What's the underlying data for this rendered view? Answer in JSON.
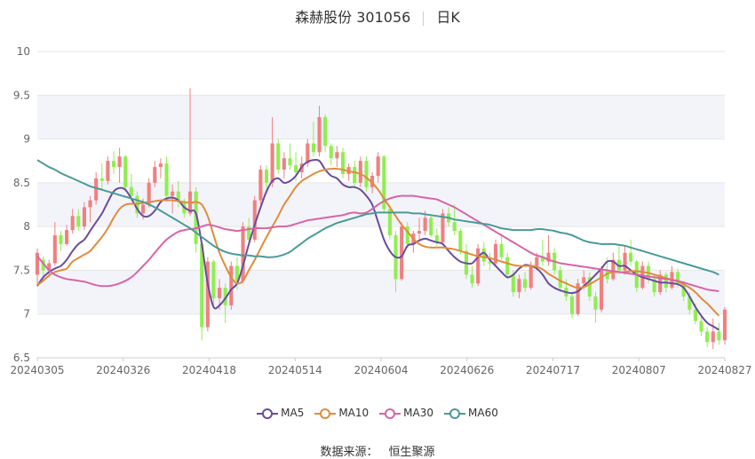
{
  "header": {
    "stock_name": "森赫股份 301056",
    "period": "日K"
  },
  "source": {
    "label": "数据来源：",
    "value": "恒生聚源"
  },
  "colors": {
    "up": "#f08080",
    "down": "#90ee50",
    "MA5": "#6a4c9c",
    "MA10": "#e08c3c",
    "MA30": "#d964a8",
    "MA60": "#4a9a9a",
    "band": "#f3f4fa",
    "grid": "#e6e6e6",
    "axis_text": "#666666"
  },
  "chart_data": {
    "type": "candlestick",
    "title": "森赫股份 301056",
    "ylim": [
      6.5,
      10
    ],
    "yticks": [
      "6.5",
      "7",
      "7.5",
      "8",
      "8.5",
      "9",
      "9.5",
      "10"
    ],
    "xtick_labels": [
      "20240305",
      "20240326",
      "20240418",
      "20240514",
      "20240604",
      "20240626",
      "20240717",
      "20240807",
      "20240827"
    ],
    "legend": [
      "MA5",
      "MA10",
      "MA30",
      "MA60"
    ],
    "legend_position": "bottom",
    "candles": [
      {
        "o": 7.45,
        "h": 7.75,
        "l": 7.32,
        "c": 7.7
      },
      {
        "o": 7.62,
        "h": 7.66,
        "l": 7.38,
        "c": 7.5
      },
      {
        "o": 7.5,
        "h": 7.62,
        "l": 7.42,
        "c": 7.58
      },
      {
        "o": 7.58,
        "h": 8.05,
        "l": 7.55,
        "c": 7.9
      },
      {
        "o": 7.9,
        "h": 7.95,
        "l": 7.72,
        "c": 7.8
      },
      {
        "o": 7.8,
        "h": 8.02,
        "l": 7.78,
        "c": 7.96
      },
      {
        "o": 7.96,
        "h": 8.2,
        "l": 7.92,
        "c": 8.12
      },
      {
        "o": 8.12,
        "h": 8.2,
        "l": 7.95,
        "c": 8.0
      },
      {
        "o": 8.0,
        "h": 8.28,
        "l": 7.96,
        "c": 8.22
      },
      {
        "o": 8.22,
        "h": 8.35,
        "l": 8.05,
        "c": 8.3
      },
      {
        "o": 8.3,
        "h": 8.62,
        "l": 8.25,
        "c": 8.55
      },
      {
        "o": 8.55,
        "h": 8.72,
        "l": 8.42,
        "c": 8.52
      },
      {
        "o": 8.52,
        "h": 8.8,
        "l": 8.48,
        "c": 8.75
      },
      {
        "o": 8.75,
        "h": 8.86,
        "l": 8.6,
        "c": 8.68
      },
      {
        "o": 8.68,
        "h": 8.9,
        "l": 8.5,
        "c": 8.8
      },
      {
        "o": 8.8,
        "h": 8.82,
        "l": 8.4,
        "c": 8.45
      },
      {
        "o": 8.45,
        "h": 8.6,
        "l": 8.3,
        "c": 8.35
      },
      {
        "o": 8.35,
        "h": 8.4,
        "l": 8.1,
        "c": 8.15
      },
      {
        "o": 8.15,
        "h": 8.32,
        "l": 8.08,
        "c": 8.25
      },
      {
        "o": 8.25,
        "h": 8.55,
        "l": 8.22,
        "c": 8.5
      },
      {
        "o": 8.5,
        "h": 8.75,
        "l": 8.45,
        "c": 8.68
      },
      {
        "o": 8.68,
        "h": 8.78,
        "l": 8.55,
        "c": 8.72
      },
      {
        "o": 8.72,
        "h": 8.8,
        "l": 8.3,
        "c": 8.35
      },
      {
        "o": 8.35,
        "h": 8.48,
        "l": 8.15,
        "c": 8.4
      },
      {
        "o": 8.4,
        "h": 8.52,
        "l": 8.22,
        "c": 8.28
      },
      {
        "o": 8.28,
        "h": 8.32,
        "l": 8.1,
        "c": 8.15
      },
      {
        "o": 8.15,
        "h": 9.58,
        "l": 8.12,
        "c": 8.4
      },
      {
        "o": 8.4,
        "h": 8.45,
        "l": 7.7,
        "c": 7.8
      },
      {
        "o": 7.8,
        "h": 7.82,
        "l": 6.7,
        "c": 6.85
      },
      {
        "o": 6.85,
        "h": 7.65,
        "l": 6.8,
        "c": 7.6
      },
      {
        "o": 7.6,
        "h": 7.62,
        "l": 7.1,
        "c": 7.18
      },
      {
        "o": 7.18,
        "h": 7.4,
        "l": 7.05,
        "c": 7.3
      },
      {
        "o": 7.3,
        "h": 7.35,
        "l": 6.9,
        "c": 7.1
      },
      {
        "o": 7.1,
        "h": 7.6,
        "l": 7.05,
        "c": 7.55
      },
      {
        "o": 7.55,
        "h": 7.65,
        "l": 7.28,
        "c": 7.38
      },
      {
        "o": 7.38,
        "h": 8.05,
        "l": 7.35,
        "c": 8.0
      },
      {
        "o": 8.0,
        "h": 8.1,
        "l": 7.8,
        "c": 7.85
      },
      {
        "o": 7.85,
        "h": 8.35,
        "l": 7.82,
        "c": 8.3
      },
      {
        "o": 8.3,
        "h": 8.7,
        "l": 8.25,
        "c": 8.65
      },
      {
        "o": 8.65,
        "h": 8.7,
        "l": 8.4,
        "c": 8.5
      },
      {
        "o": 8.5,
        "h": 9.25,
        "l": 8.45,
        "c": 8.95
      },
      {
        "o": 8.95,
        "h": 9.0,
        "l": 8.6,
        "c": 8.65
      },
      {
        "o": 8.65,
        "h": 8.85,
        "l": 8.55,
        "c": 8.78
      },
      {
        "o": 8.78,
        "h": 8.95,
        "l": 8.65,
        "c": 8.7
      },
      {
        "o": 8.7,
        "h": 8.85,
        "l": 8.52,
        "c": 8.62
      },
      {
        "o": 8.62,
        "h": 8.8,
        "l": 8.55,
        "c": 8.72
      },
      {
        "o": 8.72,
        "h": 9.0,
        "l": 8.68,
        "c": 8.95
      },
      {
        "o": 8.95,
        "h": 9.2,
        "l": 8.8,
        "c": 8.85
      },
      {
        "o": 8.85,
        "h": 9.38,
        "l": 8.8,
        "c": 9.25
      },
      {
        "o": 9.25,
        "h": 9.28,
        "l": 8.85,
        "c": 8.92
      },
      {
        "o": 8.92,
        "h": 8.95,
        "l": 8.7,
        "c": 8.78
      },
      {
        "o": 8.78,
        "h": 8.92,
        "l": 8.68,
        "c": 8.85
      },
      {
        "o": 8.85,
        "h": 8.9,
        "l": 8.55,
        "c": 8.6
      },
      {
        "o": 8.6,
        "h": 8.72,
        "l": 8.52,
        "c": 8.68
      },
      {
        "o": 8.68,
        "h": 8.75,
        "l": 8.45,
        "c": 8.5
      },
      {
        "o": 8.5,
        "h": 8.8,
        "l": 8.45,
        "c": 8.75
      },
      {
        "o": 8.75,
        "h": 8.8,
        "l": 8.4,
        "c": 8.45
      },
      {
        "o": 8.45,
        "h": 8.62,
        "l": 8.38,
        "c": 8.58
      },
      {
        "o": 8.58,
        "h": 8.85,
        "l": 8.5,
        "c": 8.8
      },
      {
        "o": 8.8,
        "h": 8.82,
        "l": 8.15,
        "c": 8.2
      },
      {
        "o": 8.2,
        "h": 8.25,
        "l": 7.85,
        "c": 7.9
      },
      {
        "o": 7.9,
        "h": 7.95,
        "l": 7.25,
        "c": 7.4
      },
      {
        "o": 7.4,
        "h": 8.05,
        "l": 7.38,
        "c": 8.0
      },
      {
        "o": 8.0,
        "h": 8.05,
        "l": 7.75,
        "c": 7.8
      },
      {
        "o": 7.8,
        "h": 7.95,
        "l": 7.7,
        "c": 7.92
      },
      {
        "o": 7.92,
        "h": 8.1,
        "l": 7.85,
        "c": 7.95
      },
      {
        "o": 7.95,
        "h": 8.18,
        "l": 7.9,
        "c": 8.1
      },
      {
        "o": 8.1,
        "h": 8.12,
        "l": 7.88,
        "c": 7.9
      },
      {
        "o": 7.9,
        "h": 7.98,
        "l": 7.78,
        "c": 7.82
      },
      {
        "o": 7.82,
        "h": 8.2,
        "l": 7.8,
        "c": 8.15
      },
      {
        "o": 8.15,
        "h": 8.22,
        "l": 8.0,
        "c": 8.05
      },
      {
        "o": 8.05,
        "h": 8.25,
        "l": 7.9,
        "c": 7.95
      },
      {
        "o": 7.95,
        "h": 7.98,
        "l": 7.68,
        "c": 7.72
      },
      {
        "o": 7.72,
        "h": 7.8,
        "l": 7.4,
        "c": 7.45
      },
      {
        "o": 7.45,
        "h": 7.55,
        "l": 7.3,
        "c": 7.35
      },
      {
        "o": 7.35,
        "h": 7.8,
        "l": 7.32,
        "c": 7.75
      },
      {
        "o": 7.75,
        "h": 7.82,
        "l": 7.55,
        "c": 7.6
      },
      {
        "o": 7.6,
        "h": 7.7,
        "l": 7.5,
        "c": 7.58
      },
      {
        "o": 7.58,
        "h": 7.85,
        "l": 7.55,
        "c": 7.8
      },
      {
        "o": 7.8,
        "h": 7.92,
        "l": 7.62,
        "c": 7.65
      },
      {
        "o": 7.65,
        "h": 7.7,
        "l": 7.4,
        "c": 7.45
      },
      {
        "o": 7.45,
        "h": 7.5,
        "l": 7.2,
        "c": 7.25
      },
      {
        "o": 7.25,
        "h": 7.45,
        "l": 7.18,
        "c": 7.4
      },
      {
        "o": 7.4,
        "h": 7.48,
        "l": 7.25,
        "c": 7.3
      },
      {
        "o": 7.3,
        "h": 7.6,
        "l": 7.28,
        "c": 7.55
      },
      {
        "o": 7.55,
        "h": 7.7,
        "l": 7.5,
        "c": 7.65
      },
      {
        "o": 7.65,
        "h": 7.85,
        "l": 7.55,
        "c": 7.6
      },
      {
        "o": 7.6,
        "h": 7.9,
        "l": 7.55,
        "c": 7.7
      },
      {
        "o": 7.7,
        "h": 7.75,
        "l": 7.45,
        "c": 7.5
      },
      {
        "o": 7.5,
        "h": 7.55,
        "l": 7.25,
        "c": 7.3
      },
      {
        "o": 7.3,
        "h": 7.4,
        "l": 7.15,
        "c": 7.2
      },
      {
        "o": 7.2,
        "h": 7.25,
        "l": 6.95,
        "c": 7.0
      },
      {
        "o": 7.0,
        "h": 7.4,
        "l": 6.98,
        "c": 7.35
      },
      {
        "o": 7.35,
        "h": 7.5,
        "l": 7.28,
        "c": 7.42
      },
      {
        "o": 7.42,
        "h": 7.48,
        "l": 7.15,
        "c": 7.2
      },
      {
        "o": 7.2,
        "h": 7.25,
        "l": 6.9,
        "c": 7.05
      },
      {
        "o": 7.05,
        "h": 7.55,
        "l": 7.02,
        "c": 7.5
      },
      {
        "o": 7.5,
        "h": 7.65,
        "l": 7.35,
        "c": 7.4
      },
      {
        "o": 7.4,
        "h": 7.7,
        "l": 7.38,
        "c": 7.62
      },
      {
        "o": 7.62,
        "h": 7.8,
        "l": 7.45,
        "c": 7.5
      },
      {
        "o": 7.5,
        "h": 7.78,
        "l": 7.45,
        "c": 7.7
      },
      {
        "o": 7.7,
        "h": 7.85,
        "l": 7.55,
        "c": 7.6
      },
      {
        "o": 7.6,
        "h": 7.62,
        "l": 7.25,
        "c": 7.3
      },
      {
        "o": 7.3,
        "h": 7.6,
        "l": 7.28,
        "c": 7.55
      },
      {
        "o": 7.55,
        "h": 7.6,
        "l": 7.35,
        "c": 7.4
      },
      {
        "o": 7.4,
        "h": 7.45,
        "l": 7.2,
        "c": 7.25
      },
      {
        "o": 7.25,
        "h": 7.5,
        "l": 7.22,
        "c": 7.45
      },
      {
        "o": 7.45,
        "h": 7.48,
        "l": 7.25,
        "c": 7.3
      },
      {
        "o": 7.3,
        "h": 7.55,
        "l": 7.28,
        "c": 7.48
      },
      {
        "o": 7.48,
        "h": 7.52,
        "l": 7.3,
        "c": 7.35
      },
      {
        "o": 7.35,
        "h": 7.38,
        "l": 7.15,
        "c": 7.2
      },
      {
        "o": 7.2,
        "h": 7.25,
        "l": 7.0,
        "c": 7.05
      },
      {
        "o": 7.05,
        "h": 7.12,
        "l": 6.88,
        "c": 6.92
      },
      {
        "o": 6.92,
        "h": 7.0,
        "l": 6.75,
        "c": 6.8
      },
      {
        "o": 6.8,
        "h": 6.85,
        "l": 6.62,
        "c": 6.68
      },
      {
        "o": 6.68,
        "h": 6.95,
        "l": 6.6,
        "c": 6.8
      },
      {
        "o": 6.8,
        "h": 6.9,
        "l": 6.65,
        "c": 6.7
      },
      {
        "o": 6.7,
        "h": 7.08,
        "l": 6.65,
        "c": 7.05
      }
    ],
    "ma_series": [
      {
        "name": "MA5",
        "values": [
          7.32,
          7.42,
          7.48,
          7.52,
          7.55,
          7.62,
          7.72,
          7.8,
          7.85,
          7.95,
          8.05,
          8.15,
          8.28,
          8.4,
          8.44,
          8.42,
          8.32,
          8.2,
          8.12,
          8.12,
          8.18,
          8.28,
          8.32,
          8.33,
          8.3,
          8.22,
          8.18,
          8.15,
          7.8,
          7.35,
          7.08,
          7.1,
          7.18,
          7.28,
          7.35,
          7.55,
          7.8,
          8.02,
          8.22,
          8.4,
          8.52,
          8.55,
          8.5,
          8.52,
          8.58,
          8.68,
          8.74,
          8.76,
          8.75,
          8.65,
          8.58,
          8.55,
          8.48,
          8.45,
          8.45,
          8.42,
          8.35,
          8.25,
          8.05,
          7.85,
          7.72,
          7.65,
          7.66,
          7.78,
          7.8,
          7.84,
          7.86,
          7.84,
          7.82,
          7.8,
          7.72,
          7.65,
          7.6,
          7.58,
          7.58,
          7.65,
          7.7,
          7.62,
          7.55,
          7.48,
          7.42,
          7.45,
          7.52,
          7.56,
          7.55,
          7.52,
          7.45,
          7.35,
          7.3,
          7.27,
          7.25,
          7.24,
          7.26,
          7.32,
          7.38,
          7.45,
          7.52,
          7.6,
          7.6,
          7.55,
          7.55,
          7.5,
          7.45,
          7.42,
          7.4,
          7.38,
          7.36,
          7.36,
          7.35,
          7.34,
          7.3,
          7.2,
          7.08,
          6.98,
          6.9,
          6.86,
          6.82
        ]
      },
      {
        "name": "MA10",
        "values": [
          7.33,
          7.38,
          7.44,
          7.48,
          7.5,
          7.52,
          7.6,
          7.64,
          7.68,
          7.72,
          7.8,
          7.88,
          7.98,
          8.1,
          8.2,
          8.25,
          8.26,
          8.26,
          8.27,
          8.28,
          8.29,
          8.3,
          8.3,
          8.3,
          8.29,
          8.28,
          8.27,
          8.28,
          8.25,
          8.12,
          7.9,
          7.7,
          7.55,
          7.42,
          7.35,
          7.38,
          7.5,
          7.62,
          7.75,
          7.88,
          8.0,
          8.12,
          8.25,
          8.35,
          8.45,
          8.52,
          8.56,
          8.6,
          8.63,
          8.65,
          8.66,
          8.66,
          8.65,
          8.63,
          8.62,
          8.6,
          8.56,
          8.5,
          8.42,
          8.32,
          8.22,
          8.12,
          8.02,
          7.94,
          7.86,
          7.8,
          7.77,
          7.76,
          7.76,
          7.76,
          7.75,
          7.74,
          7.72,
          7.7,
          7.68,
          7.66,
          7.65,
          7.64,
          7.62,
          7.6,
          7.58,
          7.56,
          7.55,
          7.55,
          7.55,
          7.54,
          7.51,
          7.46,
          7.42,
          7.38,
          7.35,
          7.32,
          7.3,
          7.31,
          7.34,
          7.38,
          7.42,
          7.46,
          7.48,
          7.48,
          7.48,
          7.49,
          7.49,
          7.48,
          7.47,
          7.45,
          7.43,
          7.41,
          7.39,
          7.37,
          7.34,
          7.3,
          7.25,
          7.18,
          7.12,
          7.05,
          6.98
        ]
      },
      {
        "name": "MA30",
        "values": [
          7.66,
          7.58,
          7.5,
          7.45,
          7.42,
          7.4,
          7.39,
          7.38,
          7.37,
          7.35,
          7.33,
          7.32,
          7.32,
          7.33,
          7.35,
          7.38,
          7.42,
          7.48,
          7.55,
          7.62,
          7.7,
          7.78,
          7.85,
          7.9,
          7.94,
          7.96,
          7.97,
          7.98,
          8.0,
          8.02,
          8.01,
          7.99,
          7.97,
          7.96,
          7.95,
          7.96,
          7.97,
          7.98,
          7.98,
          7.98,
          7.99,
          8.0,
          8.0,
          8.01,
          8.03,
          8.05,
          8.07,
          8.08,
          8.09,
          8.1,
          8.11,
          8.12,
          8.13,
          8.15,
          8.16,
          8.15,
          8.16,
          8.2,
          8.25,
          8.29,
          8.32,
          8.34,
          8.35,
          8.35,
          8.35,
          8.34,
          8.33,
          8.32,
          8.31,
          8.28,
          8.25,
          8.22,
          8.18,
          8.14,
          8.1,
          8.06,
          8.02,
          7.98,
          7.94,
          7.9,
          7.86,
          7.82,
          7.78,
          7.74,
          7.7,
          7.67,
          7.65,
          7.62,
          7.6,
          7.58,
          7.57,
          7.56,
          7.55,
          7.54,
          7.53,
          7.52,
          7.51,
          7.5,
          7.49,
          7.48,
          7.47,
          7.46,
          7.45,
          7.44,
          7.43,
          7.42,
          7.41,
          7.4,
          7.39,
          7.38,
          7.36,
          7.34,
          7.32,
          7.3,
          7.28,
          7.27,
          7.26
        ]
      },
      {
        "name": "MA60",
        "values": [
          8.76,
          8.72,
          8.68,
          8.65,
          8.61,
          8.58,
          8.55,
          8.52,
          8.49,
          8.46,
          8.44,
          8.42,
          8.4,
          8.38,
          8.36,
          8.34,
          8.32,
          8.3,
          8.28,
          8.25,
          8.22,
          8.18,
          8.14,
          8.1,
          8.06,
          8.02,
          7.98,
          7.93,
          7.88,
          7.83,
          7.78,
          7.74,
          7.71,
          7.69,
          7.68,
          7.67,
          7.67,
          7.66,
          7.66,
          7.65,
          7.65,
          7.66,
          7.68,
          7.71,
          7.76,
          7.81,
          7.86,
          7.9,
          7.94,
          7.98,
          8.01,
          8.04,
          8.06,
          8.08,
          8.1,
          8.12,
          8.14,
          8.15,
          8.16,
          8.16,
          8.16,
          8.16,
          8.16,
          8.16,
          8.15,
          8.15,
          8.14,
          8.13,
          8.12,
          8.11,
          8.1,
          8.08,
          8.07,
          8.06,
          8.05,
          8.04,
          8.03,
          8.02,
          8.0,
          7.98,
          7.97,
          7.96,
          7.96,
          7.96,
          7.96,
          7.97,
          7.97,
          7.96,
          7.95,
          7.93,
          7.92,
          7.9,
          7.87,
          7.84,
          7.82,
          7.81,
          7.8,
          7.8,
          7.8,
          7.79,
          7.78,
          7.76,
          7.74,
          7.72,
          7.7,
          7.68,
          7.66,
          7.64,
          7.62,
          7.6,
          7.58,
          7.56,
          7.54,
          7.52,
          7.5,
          7.48,
          7.45
        ]
      }
    ]
  }
}
